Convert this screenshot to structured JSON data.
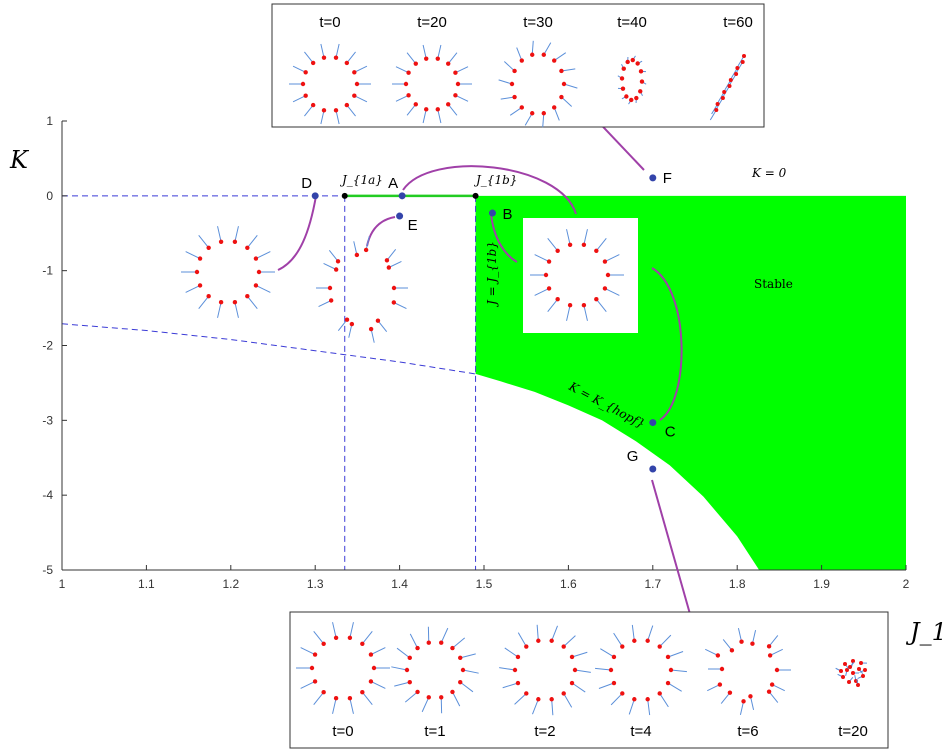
{
  "chart_data": {
    "type": "area",
    "title": "",
    "xlabel": "J_1",
    "ylabel": "K",
    "xlim": [
      1,
      2
    ],
    "ylim": [
      -5,
      1
    ],
    "xticks": [
      "1",
      "1.1",
      "1.2",
      "1.3",
      "1.4",
      "1.5",
      "1.6",
      "1.7",
      "1.8",
      "1.9",
      "2"
    ],
    "yticks": [
      "1",
      "0",
      "-1",
      "-2",
      "-3",
      "-4",
      "-5"
    ],
    "grid": false,
    "regions": [
      {
        "name": "Stable",
        "color": "#00ff00",
        "j1b": 1.49,
        "boundary": [
          [
            1.49,
            -2.38
          ],
          [
            1.52,
            -2.48
          ],
          [
            1.56,
            -2.62
          ],
          [
            1.6,
            -2.8
          ],
          [
            1.64,
            -3.0
          ],
          [
            1.68,
            -3.28
          ],
          [
            1.72,
            -3.6
          ],
          [
            1.76,
            -4.02
          ],
          [
            1.8,
            -4.55
          ],
          [
            1.826,
            -5
          ]
        ]
      }
    ],
    "green_segment": {
      "x": [
        1.335,
        1.49
      ],
      "y": 0
    },
    "hopf_curve": [
      [
        1,
        -1.71
      ],
      [
        1.1,
        -1.8
      ],
      [
        1.2,
        -1.92
      ],
      [
        1.3,
        -2.07
      ],
      [
        1.4,
        -2.22
      ],
      [
        1.49,
        -2.38
      ]
    ],
    "vlines": [
      1.335,
      1.49
    ],
    "annotations": {
      "j1a": "J_{1a}",
      "j1b": "J_{1b}",
      "k0": "K = 0",
      "stable": "Stable",
      "j_eq": "J = J_{1b}",
      "k_hopf": "K = K_{hopf}"
    },
    "points": [
      {
        "label": "D",
        "x": 1.3,
        "y": 0.0
      },
      {
        "label": "A",
        "x": 1.403,
        "y": 0.0
      },
      {
        "label": "E",
        "x": 1.4,
        "y": -0.27
      },
      {
        "label": "B",
        "x": 1.51,
        "y": -0.23
      },
      {
        "label": "F",
        "x": 1.7,
        "y": 0.24
      },
      {
        "label": "C",
        "x": 1.7,
        "y": -3.03
      },
      {
        "label": "G",
        "x": 1.7,
        "y": -3.65
      }
    ],
    "snapshots_F": [
      "t=0",
      "t=20",
      "t=30",
      "t=40",
      "t=60"
    ],
    "snapshots_G": [
      "t=0",
      "t=1",
      "t=2",
      "t=4",
      "t=6",
      "t=20"
    ]
  },
  "colors": {
    "stable": "#00ff00",
    "dashed": "#3b3bd6",
    "point": "#3344aa",
    "connector": "#a040a8",
    "agent": "#ee1111",
    "heading": "#5b8fd9"
  }
}
